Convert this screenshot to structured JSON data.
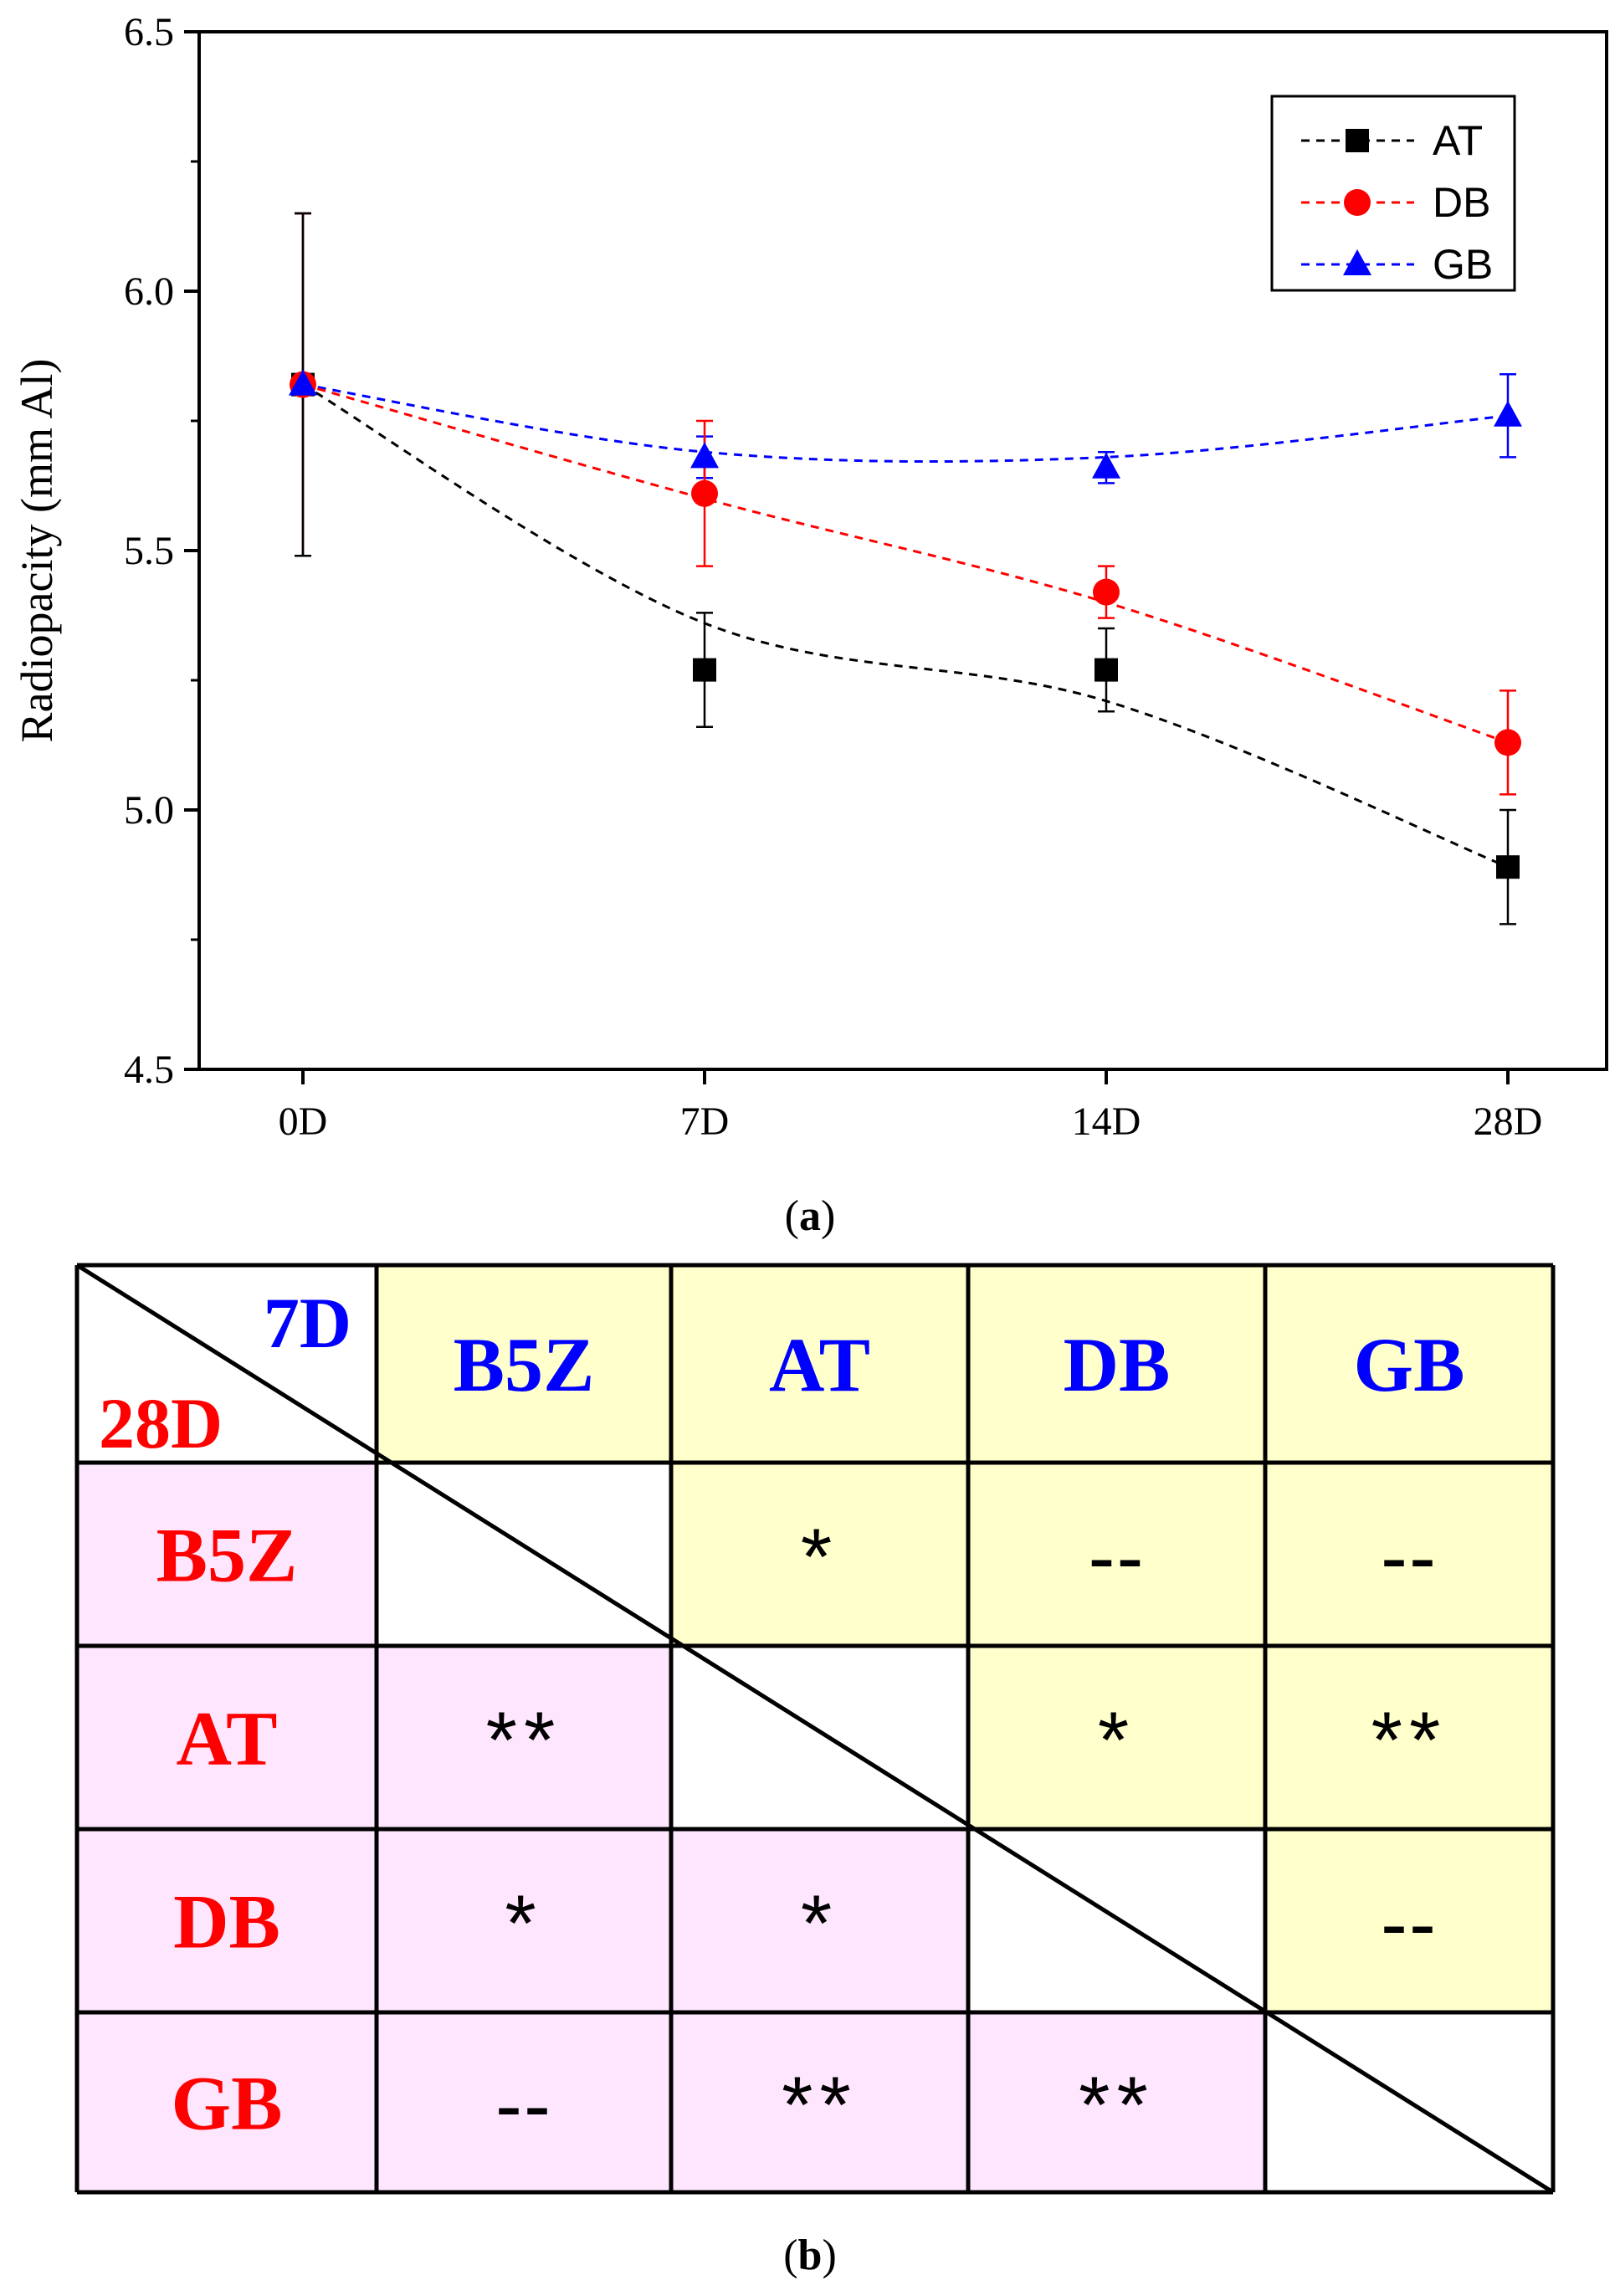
{
  "chart_data": {
    "type": "line",
    "x": [
      "0D",
      "7D",
      "14D",
      "28D"
    ],
    "ylabel": "Radiopacity (mm Al)",
    "xlabel": "",
    "ylim": [
      4.5,
      6.5
    ],
    "yticks": [
      "4.5",
      "5.0",
      "5.5",
      "6.0",
      "6.5"
    ],
    "ytick_values": [
      4.5,
      5.0,
      5.5,
      6.0,
      6.5
    ],
    "legend_position": "top-right",
    "series": [
      {
        "name": "AT",
        "marker": "square",
        "color": "#000000",
        "values": [
          5.82,
          5.27,
          5.27,
          4.89
        ],
        "errors": [
          0.33,
          0.11,
          0.08,
          0.11
        ],
        "fit": [
          5.82,
          5.36,
          5.21,
          4.89
        ]
      },
      {
        "name": "DB",
        "marker": "circle",
        "color": "#ff0000",
        "values": [
          5.82,
          5.61,
          5.42,
          5.13
        ],
        "errors": [
          0.33,
          0.14,
          0.05,
          0.1
        ],
        "fit": [
          5.82,
          5.6,
          5.4,
          5.13
        ]
      },
      {
        "name": "GB",
        "marker": "triangle",
        "color": "#0000ff",
        "values": [
          5.82,
          5.68,
          5.66,
          5.76
        ],
        "errors": [
          0.33,
          0.04,
          0.03,
          0.08
        ],
        "fit": [
          5.82,
          5.69,
          5.68,
          5.76
        ]
      }
    ]
  },
  "caption_a": "a",
  "caption_b": "b",
  "table": {
    "corner_top": "7D",
    "corner_bottom": "28D",
    "columns": [
      "B5Z",
      "AT",
      "DB",
      "GB"
    ],
    "rows": [
      {
        "label": "B5Z",
        "cells": [
          "",
          "*",
          "--",
          "--"
        ]
      },
      {
        "label": "AT",
        "cells": [
          "**",
          "",
          "*",
          "**"
        ]
      },
      {
        "label": "DB",
        "cells": [
          "*",
          "*",
          "",
          "--"
        ]
      },
      {
        "label": "GB",
        "cells": [
          "--",
          "**",
          "**",
          ""
        ]
      }
    ],
    "colors": {
      "top_text": "#0000ff",
      "bottom_text": "#ff0000",
      "upper_fill": "#ffffcc",
      "lower_fill": "#ffe6ff"
    }
  }
}
